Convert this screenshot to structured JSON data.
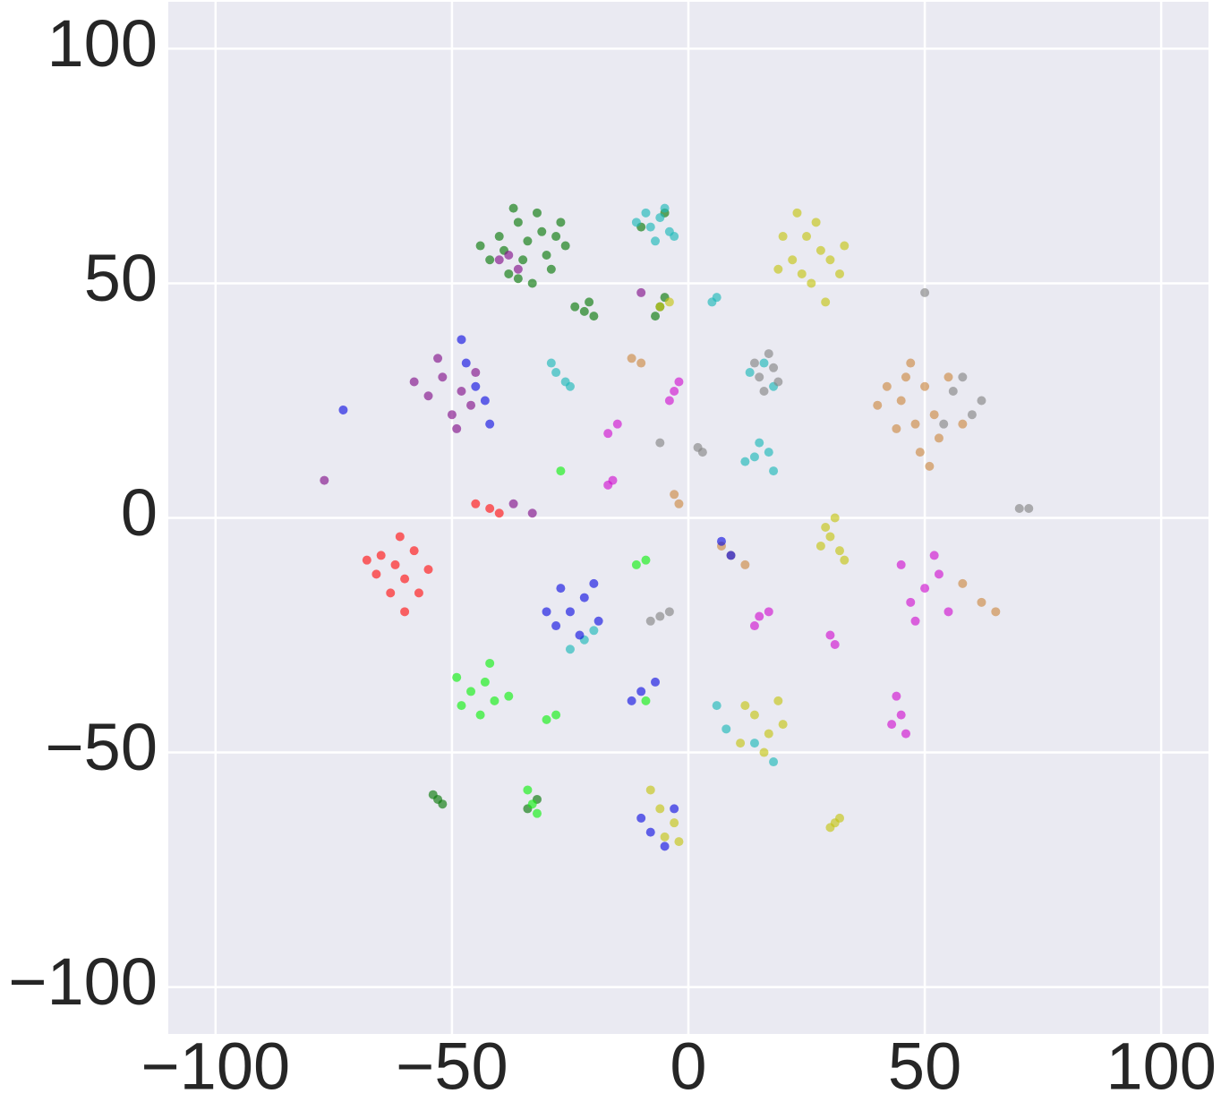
{
  "chart_data": {
    "type": "scatter",
    "xlim": [
      -110,
      110
    ],
    "ylim": [
      -110,
      110
    ],
    "xticks": [
      {
        "value": -100,
        "label": "−100"
      },
      {
        "value": -50,
        "label": "−50"
      },
      0,
      50,
      100
    ],
    "yticks": [
      {
        "value": -100,
        "label": "−100"
      },
      {
        "value": -50,
        "label": "−50"
      },
      0,
      50,
      100
    ],
    "grid": true,
    "background": "#eaeaf2",
    "series": [
      {
        "color": "#0b7a0b",
        "x": [
          -40,
          -36,
          -32,
          -28,
          -30,
          -35,
          -42,
          -38,
          -33,
          -29,
          -26,
          -44,
          -37,
          -31,
          -34,
          -39,
          -27,
          -36,
          -22,
          -20,
          -24,
          -21,
          -53,
          -54,
          -52,
          -6,
          -7,
          -5,
          -10,
          -5,
          -34,
          -32
        ],
        "y": [
          60,
          63,
          65,
          60,
          56,
          55,
          55,
          52,
          50,
          53,
          58,
          58,
          66,
          61,
          59,
          57,
          63,
          51,
          44,
          43,
          45,
          46,
          -60,
          -59,
          -61,
          45,
          43,
          47,
          62,
          65,
          -62,
          -60
        ]
      },
      {
        "color": "#1fb8b8",
        "x": [
          -8,
          -6,
          -4,
          -9,
          -3,
          -7,
          -11,
          -5,
          6,
          5,
          -28,
          -26,
          -29,
          -25,
          13,
          18,
          16,
          14,
          17,
          12,
          18,
          15,
          8,
          14,
          6,
          18,
          -25,
          -22,
          -20
        ],
        "y": [
          62,
          64,
          61,
          65,
          60,
          59,
          63,
          66,
          47,
          46,
          31,
          29,
          33,
          28,
          31,
          28,
          33,
          13,
          14,
          12,
          10,
          16,
          -45,
          -48,
          -40,
          -52,
          -28,
          -26,
          -24
        ]
      },
      {
        "color": "#c4c416",
        "x": [
          22,
          25,
          28,
          24,
          30,
          20,
          27,
          32,
          23,
          26,
          33,
          19,
          29,
          -6,
          -4,
          30,
          32,
          29,
          33,
          31,
          28,
          14,
          17,
          12,
          19,
          16,
          11,
          20,
          -6,
          -3,
          -8,
          -2,
          -5,
          31,
          30,
          32
        ],
        "y": [
          55,
          60,
          57,
          52,
          55,
          60,
          63,
          52,
          65,
          50,
          58,
          53,
          46,
          45,
          46,
          -4,
          -7,
          -2,
          -9,
          0,
          -6,
          -42,
          -46,
          -40,
          -39,
          -50,
          -48,
          -44,
          -62,
          -65,
          -58,
          -69,
          -68,
          -65,
          -66,
          -64
        ]
      },
      {
        "color": "#858585",
        "x": [
          15,
          18,
          16,
          19,
          14,
          17,
          56,
          60,
          58,
          62,
          54,
          -6,
          -4,
          -8,
          70,
          72,
          50,
          2,
          3,
          -6
        ],
        "y": [
          30,
          32,
          27,
          29,
          33,
          35,
          27,
          22,
          30,
          25,
          20,
          -21,
          -20,
          -22,
          2,
          2,
          48,
          15,
          14,
          16
        ]
      },
      {
        "color": "#cd8a45",
        "x": [
          45,
          50,
          48,
          52,
          42,
          55,
          47,
          40,
          53,
          49,
          44,
          58,
          46,
          51,
          -12,
          -10,
          -3,
          -2,
          9,
          12,
          7,
          62,
          65,
          58
        ],
        "y": [
          25,
          28,
          20,
          22,
          28,
          30,
          33,
          24,
          17,
          14,
          19,
          20,
          30,
          11,
          34,
          33,
          5,
          3,
          -8,
          -10,
          -6,
          -18,
          -20,
          -14
        ]
      },
      {
        "color": "#82128a",
        "x": [
          -52,
          -48,
          -55,
          -50,
          -45,
          -53,
          -58,
          -49,
          -46,
          -38,
          -36,
          -40,
          -77,
          -37,
          -33,
          -10
        ],
        "y": [
          30,
          27,
          26,
          22,
          31,
          34,
          29,
          19,
          24,
          56,
          53,
          55,
          8,
          3,
          1,
          48
        ]
      },
      {
        "color": "#1414e0",
        "x": [
          -45,
          -47,
          -43,
          -48,
          -42,
          -25,
          -22,
          -28,
          -20,
          -27,
          -23,
          -30,
          -19,
          -10,
          -7,
          -12,
          -8,
          -5,
          -10,
          -3,
          -73,
          7,
          9
        ],
        "y": [
          28,
          33,
          25,
          38,
          20,
          -20,
          -17,
          -23,
          -14,
          -15,
          -25,
          -20,
          -22,
          -37,
          -35,
          -39,
          -67,
          -70,
          -64,
          -62,
          23,
          -5,
          -8
        ]
      },
      {
        "color": "#d014d0",
        "x": [
          -3,
          -2,
          -4,
          -15,
          -17,
          -16,
          -17,
          50,
          53,
          47,
          55,
          45,
          52,
          48,
          45,
          44,
          46,
          43,
          30,
          31,
          15,
          17,
          14
        ],
        "y": [
          27,
          29,
          25,
          20,
          18,
          8,
          7,
          -15,
          -12,
          -18,
          -20,
          -10,
          -8,
          -22,
          -42,
          -38,
          -46,
          -44,
          -25,
          -27,
          -21,
          -20,
          -23
        ]
      },
      {
        "color": "#ff1414",
        "x": [
          -62,
          -65,
          -60,
          -58,
          -66,
          -61,
          -57,
          -63,
          -55,
          -68,
          -60,
          -42,
          -40,
          -45
        ],
        "y": [
          -10,
          -8,
          -13,
          -7,
          -12,
          -4,
          -16,
          -16,
          -11,
          -9,
          -20,
          2,
          1,
          3
        ]
      },
      {
        "color": "#14f014",
        "x": [
          -46,
          -43,
          -48,
          -41,
          -44,
          -49,
          -42,
          -38,
          -30,
          -28,
          -33,
          -34,
          -32,
          -11,
          -9,
          -27,
          -9
        ],
        "y": [
          -37,
          -35,
          -40,
          -39,
          -42,
          -34,
          -31,
          -38,
          -43,
          -42,
          -61,
          -58,
          -63,
          -10,
          -9,
          10,
          -39
        ]
      }
    ]
  }
}
